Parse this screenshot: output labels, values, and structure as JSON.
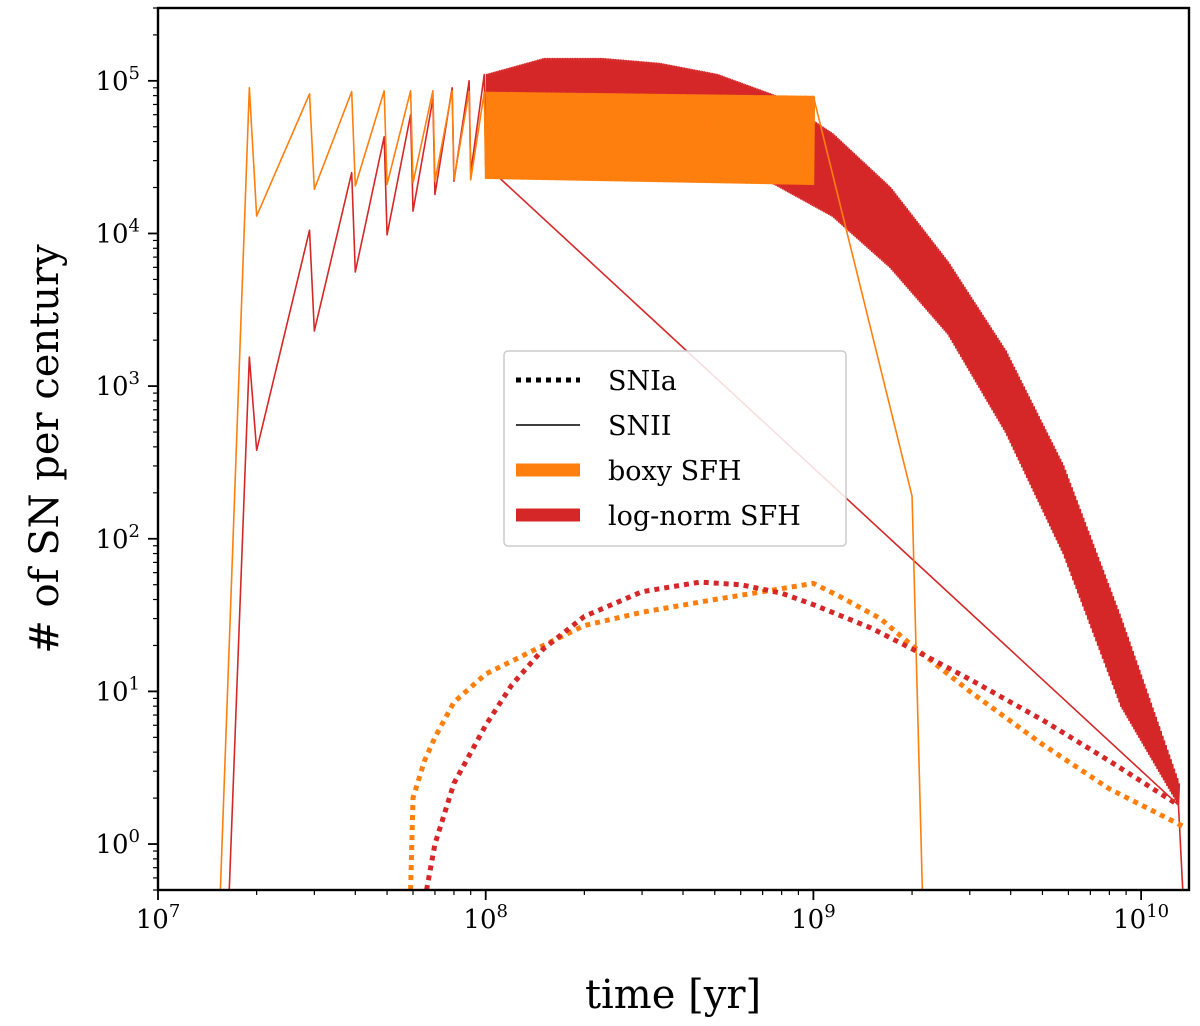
{
  "chart_data": {
    "type": "line",
    "xlabel": "time [yr]",
    "ylabel": "# of SN per century",
    "xscale": "log",
    "yscale": "log",
    "xlim": [
      10000000,
      14000000000
    ],
    "ylim": [
      0.5,
      300000
    ],
    "x_ticks": [
      {
        "value": 10000000,
        "base": "10",
        "exp": "7"
      },
      {
        "value": 100000000,
        "base": "10",
        "exp": "8"
      },
      {
        "value": 1000000000,
        "base": "10",
        "exp": "9"
      },
      {
        "value": 10000000000,
        "base": "10",
        "exp": "10"
      }
    ],
    "y_ticks": [
      {
        "value": 1,
        "base": "10",
        "exp": "0"
      },
      {
        "value": 10,
        "base": "10",
        "exp": "1"
      },
      {
        "value": 100,
        "base": "10",
        "exp": "2"
      },
      {
        "value": 1000,
        "base": "10",
        "exp": "3"
      },
      {
        "value": 10000,
        "base": "10",
        "exp": "4"
      },
      {
        "value": 100000,
        "base": "10",
        "exp": "5"
      }
    ],
    "grid": false,
    "legend": {
      "placement": "center",
      "entries": [
        {
          "label": "SNIa",
          "style": "dotted",
          "color": "#000000"
        },
        {
          "label": "SNII",
          "style": "solid-thin",
          "color": "#000000"
        },
        {
          "label": "boxy SFH",
          "style": "solid-thick",
          "color": "#ff7f0e"
        },
        {
          "label": "log-norm SFH",
          "style": "solid-thick",
          "color": "#d62728"
        }
      ]
    },
    "series": [
      {
        "name": "boxy SFH",
        "sn_type": "SNII",
        "style": "solid",
        "color": "#ff7f0e",
        "points": [
          [
            15500000,
            0.5
          ],
          [
            19000000,
            90000
          ],
          [
            20000000,
            13000
          ],
          [
            29000000,
            82000
          ],
          [
            30000000,
            19500
          ],
          [
            39000000,
            85000
          ],
          [
            40000000,
            20500
          ],
          [
            49000000,
            86000
          ],
          [
            50000000,
            21000
          ],
          [
            59000000,
            86000
          ],
          [
            60000000,
            21500
          ],
          [
            69000000,
            86000
          ],
          [
            70000000,
            22000
          ],
          [
            79000000,
            86000
          ],
          [
            80000000,
            22500
          ],
          [
            89000000,
            85000
          ],
          [
            90000000,
            22500
          ],
          [
            99000000,
            84000
          ],
          [
            100000000,
            23000
          ],
          [
            1000000000,
            79000
          ],
          [
            2000000000,
            190
          ],
          [
            2150000000,
            0.5
          ]
        ],
        "band": {
          "x_start": 100000000,
          "x_end": 1000000000,
          "low": [
            23000,
            21000
          ],
          "high": [
            84000,
            79000
          ]
        }
      },
      {
        "name": "log-norm SFH",
        "sn_type": "SNII",
        "style": "solid",
        "color": "#d62728",
        "points": [
          [
            16500000,
            0.5
          ],
          [
            19000000,
            1550
          ],
          [
            20000000,
            380
          ],
          [
            29000000,
            10500
          ],
          [
            30000000,
            2300
          ],
          [
            39000000,
            25000
          ],
          [
            40000000,
            5600
          ],
          [
            49000000,
            43000
          ],
          [
            50000000,
            9800
          ],
          [
            59000000,
            60000
          ],
          [
            60000000,
            14000
          ],
          [
            69000000,
            76000
          ],
          [
            70000000,
            18000
          ],
          [
            79000000,
            90000
          ],
          [
            80000000,
            22000
          ],
          [
            89000000,
            100000
          ],
          [
            90000000,
            25000
          ],
          [
            99000000,
            110000
          ],
          [
            100000000,
            28000
          ],
          [
            13000000000,
            1.8
          ],
          [
            13400000000,
            0.5
          ]
        ],
        "band": {
          "x_start": 100000000,
          "x_end": 13000000000,
          "low": [
            28000,
            33000,
            35000,
            33000,
            29000,
            21000,
            13000,
            6000,
            2200,
            500,
            80,
            8,
            1.8
          ],
          "high": [
            110000,
            140000,
            140000,
            130000,
            110000,
            80000,
            45000,
            20000,
            6500,
            1700,
            300,
            30,
            2.5
          ]
        }
      },
      {
        "name": "boxy SFH",
        "sn_type": "SNIa",
        "style": "dotted",
        "color": "#ff7f0e",
        "points": [
          [
            59000000,
            0.5
          ],
          [
            60000000,
            2.0
          ],
          [
            65000000,
            3.5
          ],
          [
            70000000,
            5.0
          ],
          [
            80000000,
            8.5
          ],
          [
            100000000,
            13
          ],
          [
            150000000,
            20
          ],
          [
            200000000,
            27
          ],
          [
            300000000,
            33
          ],
          [
            500000000,
            40
          ],
          [
            1000000000,
            51
          ],
          [
            1200000000,
            42
          ],
          [
            1600000000,
            30
          ],
          [
            2000000000,
            20
          ],
          [
            3000000000,
            10
          ],
          [
            5000000000,
            4.5
          ],
          [
            8000000000,
            2.3
          ],
          [
            13500000000,
            1.3
          ]
        ]
      },
      {
        "name": "log-norm SFH",
        "sn_type": "SNIa",
        "style": "dotted",
        "color": "#d62728",
        "points": [
          [
            66000000,
            0.5
          ],
          [
            70000000,
            1.0
          ],
          [
            80000000,
            2.5
          ],
          [
            100000000,
            6
          ],
          [
            120000000,
            11
          ],
          [
            150000000,
            19
          ],
          [
            200000000,
            31
          ],
          [
            300000000,
            45
          ],
          [
            450000000,
            52
          ],
          [
            600000000,
            50
          ],
          [
            800000000,
            44
          ],
          [
            1000000000,
            37
          ],
          [
            1500000000,
            26
          ],
          [
            2000000000,
            19
          ],
          [
            3000000000,
            12
          ],
          [
            5000000000,
            6.5
          ],
          [
            8000000000,
            3.5
          ],
          [
            13000000000,
            1.8
          ]
        ]
      }
    ]
  }
}
